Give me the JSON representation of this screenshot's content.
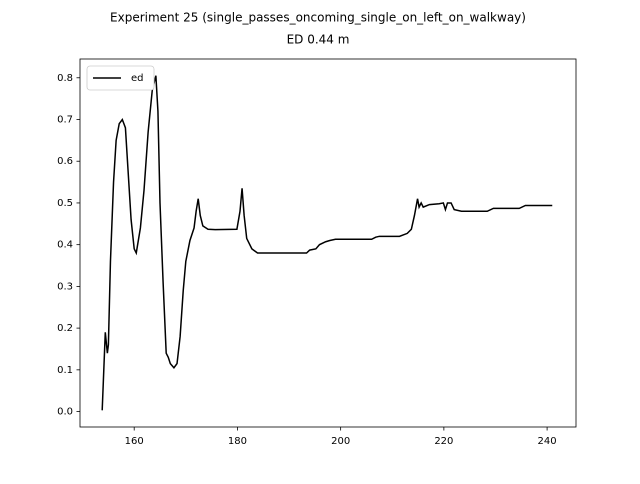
{
  "chart_data": {
    "type": "line",
    "title": "Experiment 25 (single_passes_oncoming_single_on_left_on_walkway)",
    "subtitle": "ED 0.44 m",
    "x": [
      153.8,
      154.4,
      154.8,
      155.0,
      155.4,
      156.0,
      156.5,
      157.1,
      157.7,
      158.3,
      158.8,
      159.4,
      160.0,
      160.4,
      161.2,
      161.9,
      162.7,
      163.5,
      164.2,
      164.6,
      165.0,
      165.6,
      166.2,
      166.6,
      167.0,
      167.7,
      168.3,
      168.9,
      169.5,
      170.0,
      170.8,
      171.6,
      172.0,
      172.4,
      172.8,
      173.3,
      174.3,
      175.7,
      179.9,
      180.5,
      180.9,
      181.3,
      181.8,
      182.8,
      183.9,
      192.1,
      193.4,
      194.0,
      195.2,
      195.9,
      197.1,
      197.9,
      199.0,
      206.0,
      206.8,
      207.5,
      211.4,
      212.9,
      213.7,
      214.3,
      214.9,
      215.2,
      215.6,
      216.0,
      217.2,
      219.1,
      219.9,
      220.3,
      220.7,
      221.4,
      222.0,
      223.4,
      228.4,
      229.6,
      234.6,
      235.8,
      241.0
    ],
    "series": [
      {
        "name": "ed",
        "color": "#000000",
        "values": [
          0.003,
          0.19,
          0.14,
          0.16,
          0.36,
          0.55,
          0.65,
          0.69,
          0.7,
          0.68,
          0.58,
          0.46,
          0.39,
          0.38,
          0.44,
          0.53,
          0.67,
          0.77,
          0.805,
          0.72,
          0.5,
          0.31,
          0.14,
          0.13,
          0.115,
          0.105,
          0.115,
          0.18,
          0.29,
          0.36,
          0.41,
          0.44,
          0.48,
          0.51,
          0.47,
          0.445,
          0.437,
          0.436,
          0.437,
          0.48,
          0.535,
          0.47,
          0.415,
          0.39,
          0.38,
          0.38,
          0.38,
          0.387,
          0.39,
          0.4,
          0.407,
          0.41,
          0.413,
          0.413,
          0.418,
          0.42,
          0.42,
          0.427,
          0.437,
          0.47,
          0.51,
          0.49,
          0.5,
          0.49,
          0.496,
          0.498,
          0.5,
          0.484,
          0.5,
          0.5,
          0.484,
          0.48,
          0.48,
          0.487,
          0.487,
          0.494,
          0.494
        ]
      }
    ],
    "xlim": [
      149.5,
      245.6
    ],
    "ylim": [
      -0.037,
      0.845
    ],
    "xticks": [
      160,
      180,
      200,
      220,
      240
    ],
    "yticks": [
      {
        "value": 0,
        "label": "0.0"
      },
      0.1,
      0.2,
      0.3,
      0.4,
      0.5,
      0.6,
      0.7,
      0.8
    ],
    "legend": "upper left",
    "grid": false
  }
}
